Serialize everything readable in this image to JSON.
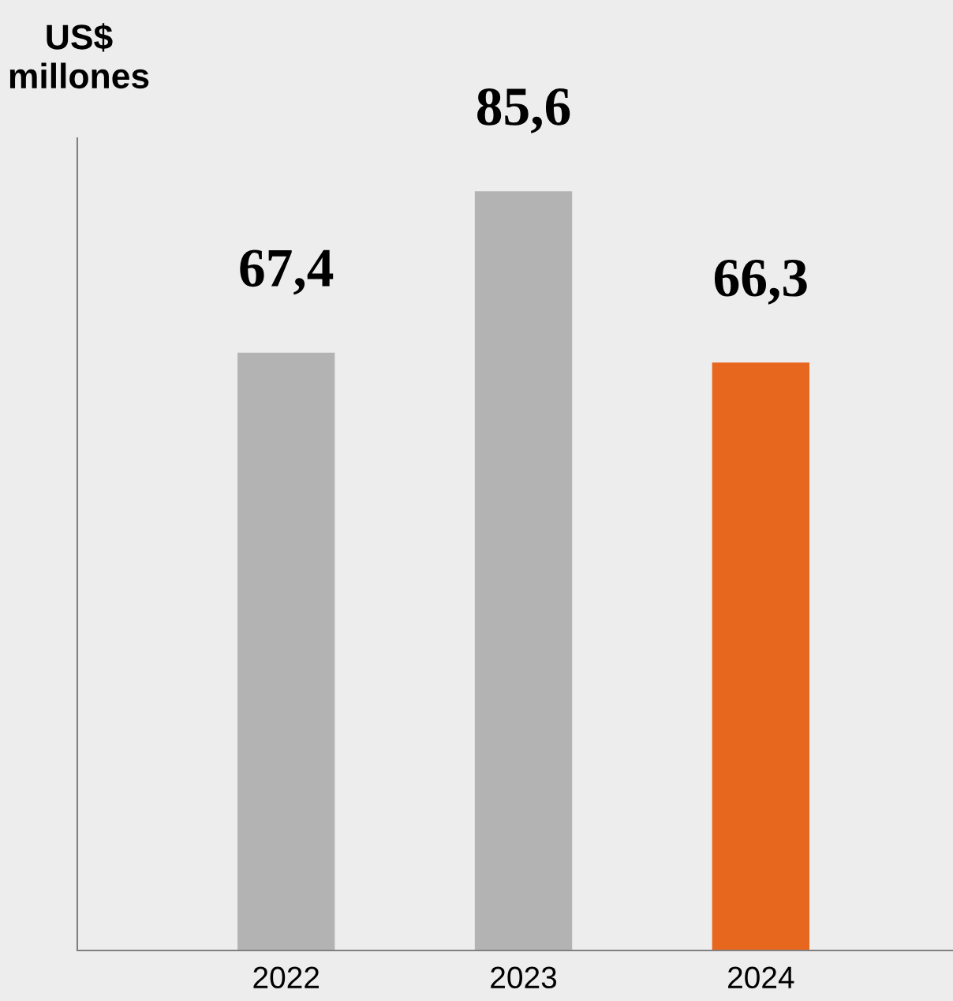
{
  "chart_data": {
    "type": "bar",
    "ylabel": "US$\nmillones",
    "categories": [
      "2022",
      "2023",
      "2024"
    ],
    "values": [
      67.4,
      85.6,
      66.3
    ],
    "colors": [
      "#b3b3b3",
      "#b3b3b3",
      "#e8671e"
    ],
    "value_labels": [
      "67,4",
      "85,6",
      "66,3"
    ],
    "grid": false,
    "legend": false
  }
}
